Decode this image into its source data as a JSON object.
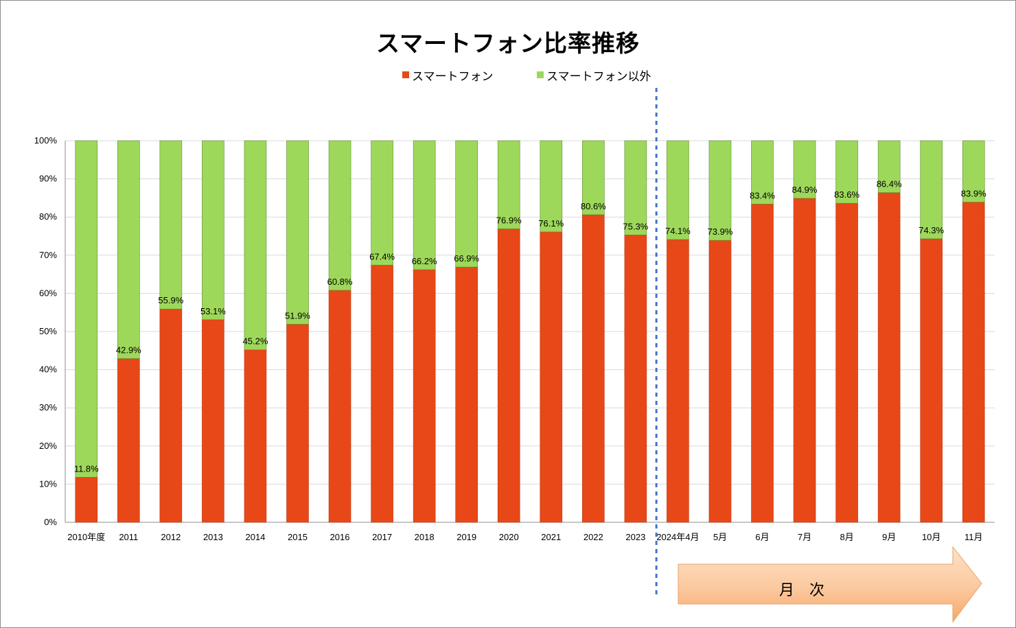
{
  "chart_data": {
    "type": "bar",
    "stacked": true,
    "percent": true,
    "title": "スマートフォン比率推移",
    "categories": [
      "2010年度",
      "2011",
      "2012",
      "2013",
      "2014",
      "2015",
      "2016",
      "2017",
      "2018",
      "2019",
      "2020",
      "2021",
      "2022",
      "2023",
      "2024年4月",
      "5月",
      "6月",
      "7月",
      "8月",
      "9月",
      "10月",
      "11月"
    ],
    "series": [
      {
        "name": "スマートフォン",
        "color": "#e84818",
        "values": [
          11.8,
          42.9,
          55.9,
          53.1,
          45.2,
          51.9,
          60.8,
          67.4,
          66.2,
          66.9,
          76.9,
          76.1,
          80.6,
          75.3,
          74.1,
          73.9,
          83.4,
          84.9,
          83.6,
          86.4,
          74.3,
          83.9
        ]
      },
      {
        "name": "スマートフォン以外",
        "color": "#9ed85a",
        "values": [
          88.2,
          57.1,
          44.1,
          46.9,
          54.8,
          48.1,
          39.2,
          32.6,
          33.8,
          33.1,
          23.1,
          23.9,
          19.4,
          24.7,
          25.9,
          26.1,
          16.6,
          15.1,
          16.4,
          13.6,
          25.7,
          16.1
        ]
      }
    ],
    "data_labels": [
      "11.8%",
      "42.9%",
      "55.9%",
      "53.1%",
      "45.2%",
      "51.9%",
      "60.8%",
      "67.4%",
      "66.2%",
      "66.9%",
      "76.9%",
      "76.1%",
      "80.6%",
      "75.3%",
      "74.1%",
      "73.9%",
      "83.4%",
      "84.9%",
      "83.6%",
      "86.4%",
      "74.3%",
      "83.9%"
    ],
    "ylim": [
      0,
      100
    ],
    "y_ticks": [
      "0%",
      "10%",
      "20%",
      "30%",
      "40%",
      "50%",
      "60%",
      "70%",
      "80%",
      "90%",
      "100%"
    ],
    "grid": true,
    "legend": "top-center",
    "annotation": {
      "text": "月　次",
      "divider_before": "2024年4月"
    }
  },
  "legend": {
    "smartphone": "スマートフォン",
    "other": "スマートフォン以外",
    "smartphone_color": "#e84818",
    "other_color": "#9ed85a"
  },
  "arrow": {
    "label": "月　次"
  }
}
